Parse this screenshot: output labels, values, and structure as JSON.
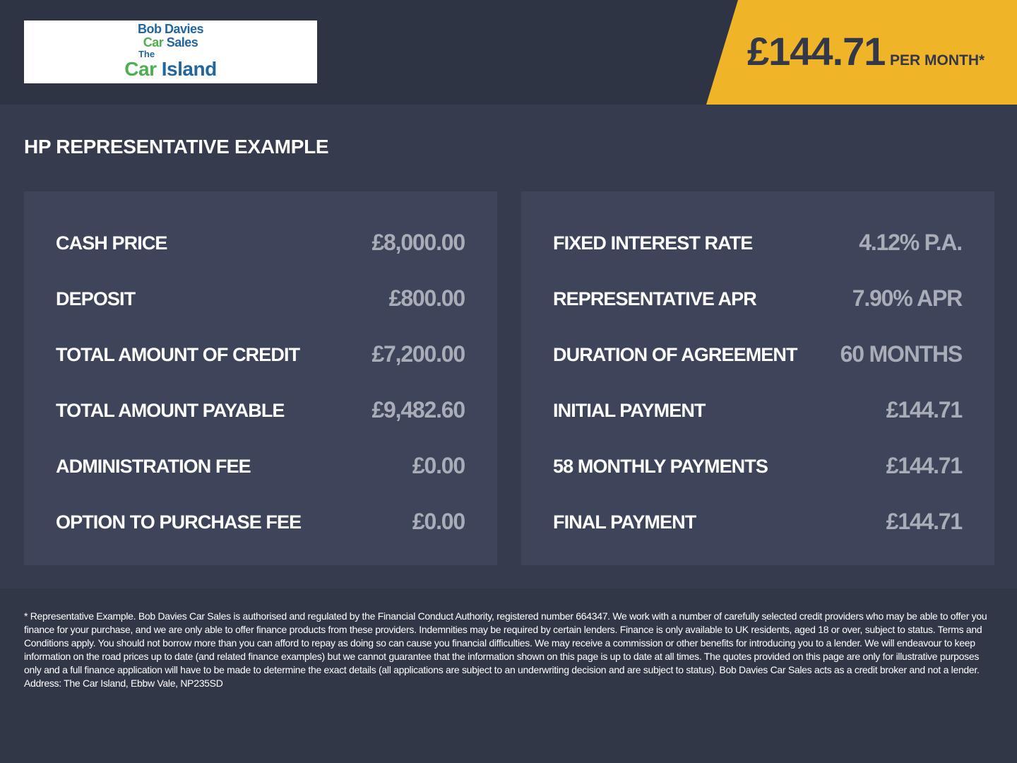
{
  "logo": {
    "line1": "Bob Davies",
    "line2a": "Car",
    "line2b": " Sales",
    "line3": "The",
    "line4a": "Car",
    "line4b": " Island"
  },
  "price_banner": {
    "amount": "£144.71",
    "label": "PER MONTH*",
    "color": "#f0b429"
  },
  "title": "HP REPRESENTATIVE EXAMPLE",
  "left_panel": [
    {
      "label": "CASH PRICE",
      "value": "£8,000.00"
    },
    {
      "label": "DEPOSIT",
      "value": "£800.00"
    },
    {
      "label": "TOTAL AMOUNT OF CREDIT",
      "value": "£7,200.00"
    },
    {
      "label": "TOTAL AMOUNT PAYABLE",
      "value": "£9,482.60"
    },
    {
      "label": "ADMINISTRATION FEE",
      "value": "£0.00"
    },
    {
      "label": "OPTION TO PURCHASE FEE",
      "value": "£0.00"
    }
  ],
  "right_panel": [
    {
      "label": "FIXED INTEREST RATE",
      "value": "4.12% P.A."
    },
    {
      "label": "REPRESENTATIVE APR",
      "value": "7.90% APR"
    },
    {
      "label": "DURATION OF AGREEMENT",
      "value": "60 MONTHS"
    },
    {
      "label": "INITIAL PAYMENT",
      "value": "£144.71"
    },
    {
      "label": "58 MONTHLY PAYMENTS",
      "value": "£144.71"
    },
    {
      "label": "FINAL PAYMENT",
      "value": "£144.71"
    }
  ],
  "disclaimer": [
    "* Representative Example. Bob Davies Car Sales is authorised and regulated by the Financial Conduct Authority, registered number 664347. We work with a number of carefully selected credit providers who may be",
    "able to offer you finance for your purchase, and we are only able to offer finance products from these providers. Indemnities may be required by certain lenders. Finance is only available to UK residents, aged",
    "18 or over, subject to status. Terms and Conditions apply. You should not borrow more than you can afford to repay as doing so can cause you financial difficulties. We may receive a commission or other benefits",
    "for introducing you to a lender. We will endeavour to keep information on the road prices up to date (and related finance examples) but we cannot guarantee that the information shown on this page is up to date",
    "at all times. The quotes provided on this page are only for illustrative purposes only and a full finance application will have to be made to determine the exact details (all applications are subject to an",
    "underwriting decision and are subject to status). Bob Davies Car Sales acts as a credit broker and not a lender. Address: The Car Island, Ebbw Vale, NP235SD"
  ]
}
